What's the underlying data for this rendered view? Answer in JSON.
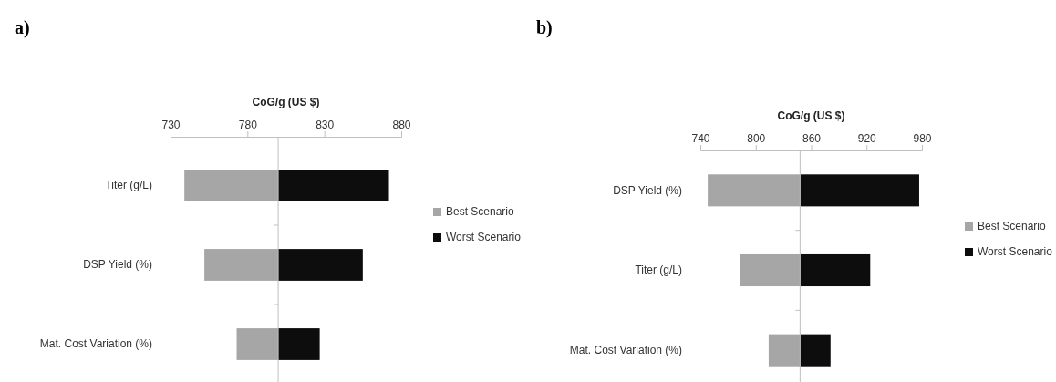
{
  "chart_data": [
    {
      "type": "bar",
      "title": "a)",
      "xlabel": "CoG/g (US $)",
      "orientation": "horizontal",
      "categories": [
        "Titer (g/L)",
        "DSP Yield (%)",
        "Mat. Cost Variation (%)"
      ],
      "xlim": [
        730,
        880
      ],
      "xticks": [
        730,
        780,
        830,
        880
      ],
      "legend": "right",
      "ref_lines": [
        {
          "axis": "x",
          "value": 800,
          "color": "#bfbfbf"
        }
      ],
      "series": [
        {
          "name": "Best Scenario",
          "color": "#a6a6a6",
          "base": [
            800,
            800,
            800
          ],
          "values": [
            -61,
            -48,
            -27
          ]
        },
        {
          "name": "Worst Scenario",
          "color": "#0d0d0d",
          "base": [
            800,
            800,
            800
          ],
          "values": [
            72,
            55,
            27
          ]
        }
      ]
    },
    {
      "type": "bar",
      "title": "b)",
      "xlabel": "CoG/g (US $)",
      "orientation": "horizontal",
      "categories": [
        "DSP Yield (%)",
        "Titer (g/L)",
        "Mat. Cost Variation (%)"
      ],
      "xlim": [
        740,
        980
      ],
      "xticks": [
        740,
        800,
        860,
        920,
        980
      ],
      "legend": "right",
      "ref_lines": [
        {
          "axis": "x",
          "value": 848,
          "color": "#bfbfbf"
        }
      ],
      "series": [
        {
          "name": "Best Scenario",
          "color": "#a6a6a6",
          "base": [
            848,
            848,
            848
          ],
          "values": [
            -100,
            -65,
            -34
          ]
        },
        {
          "name": "Worst Scenario",
          "color": "#0d0d0d",
          "base": [
            848,
            848,
            848
          ],
          "values": [
            129,
            76,
            33
          ]
        }
      ]
    }
  ]
}
